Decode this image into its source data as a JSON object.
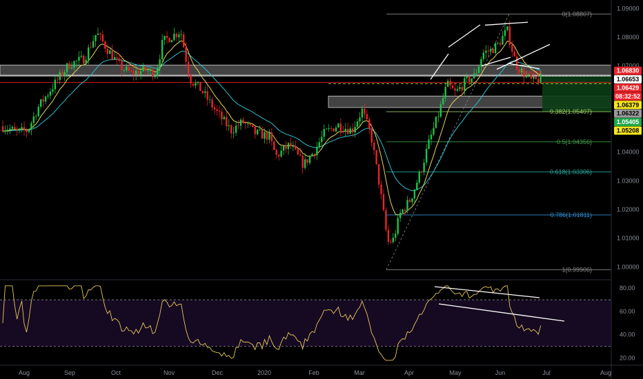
{
  "chart_data": {
    "type": "candlestick",
    "price_axis": {
      "ticks": [
        "1.09000",
        "1.08000",
        "1.07000",
        "1.06000",
        "1.05000",
        "1.04000",
        "1.03000",
        "1.02000",
        "1.01000",
        "1.00000"
      ],
      "tick_values": [
        1.09,
        1.08,
        1.07,
        1.06,
        1.05,
        1.04,
        1.03,
        1.02,
        1.01,
        1.0
      ],
      "range": [
        0.9965,
        1.0915
      ]
    },
    "time_axis": {
      "labels": [
        "Aug",
        "Sep",
        "Oct",
        "Nov",
        "Dec",
        "2020",
        "Feb",
        "Mar",
        "Apr",
        "May",
        "Jun",
        "Jul",
        "Aug"
      ]
    },
    "price_tags": [
      {
        "text": "1.06830",
        "value": 1.0683,
        "bg": "#e8242a",
        "fg": "#ffffff"
      },
      {
        "text": "1.06653",
        "value": 1.06653,
        "bg": "#ffffff",
        "fg": "#000000"
      },
      {
        "text": "1.06429",
        "value": 1.06429,
        "bg": "#e8242a",
        "fg": "#ffffff"
      },
      {
        "text": "08:32:52",
        "value": 1.0626,
        "bg": "#e8242a",
        "fg": "#ffffff"
      },
      {
        "text": "1.06379",
        "value": 1.06379,
        "bg": "#f5e61e",
        "fg": "#000000"
      },
      {
        "text": "1.06322",
        "value": 1.06322,
        "bg": "#9a9a9a",
        "fg": "#000000"
      },
      {
        "text": "1.05405",
        "value": 1.05405,
        "bg": "#1fa84a",
        "fg": "#ffffff"
      },
      {
        "text": "1.05208",
        "value": 1.05208,
        "bg": "#f5e61e",
        "fg": "#000000"
      }
    ],
    "fib_levels": [
      {
        "label": "0(1.08807)",
        "value": 1.08807,
        "color": "#8a8a8a"
      },
      {
        "label": "0.382(1.05407)",
        "value": 1.05407,
        "color": "#9ccc65"
      },
      {
        "label": "0.5(1.04356)",
        "value": 1.04356,
        "color": "#43a047"
      },
      {
        "label": "0.618(1.03306)",
        "value": 1.03306,
        "color": "#26a69a"
      },
      {
        "label": "0.786(1.01811)",
        "value": 1.01811,
        "color": "#2f8fd0"
      },
      {
        "label": "1(0.99906)",
        "value": 0.99906,
        "color": "#8a8a8a"
      }
    ],
    "rsi": {
      "ticks": [
        "80.00",
        "60.00",
        "40.00",
        "20.00"
      ],
      "tick_values": [
        80,
        60,
        40,
        20
      ],
      "range": [
        15,
        86
      ],
      "band": [
        70,
        30
      ]
    },
    "colors": {
      "up": "#1fc34a",
      "down": "#e8242a",
      "ma_fast": "#e8d85a",
      "ma_slow": "#2fc0cf",
      "rsi_line": "#e8c85a",
      "rsi_band": "#160a22"
    }
  }
}
